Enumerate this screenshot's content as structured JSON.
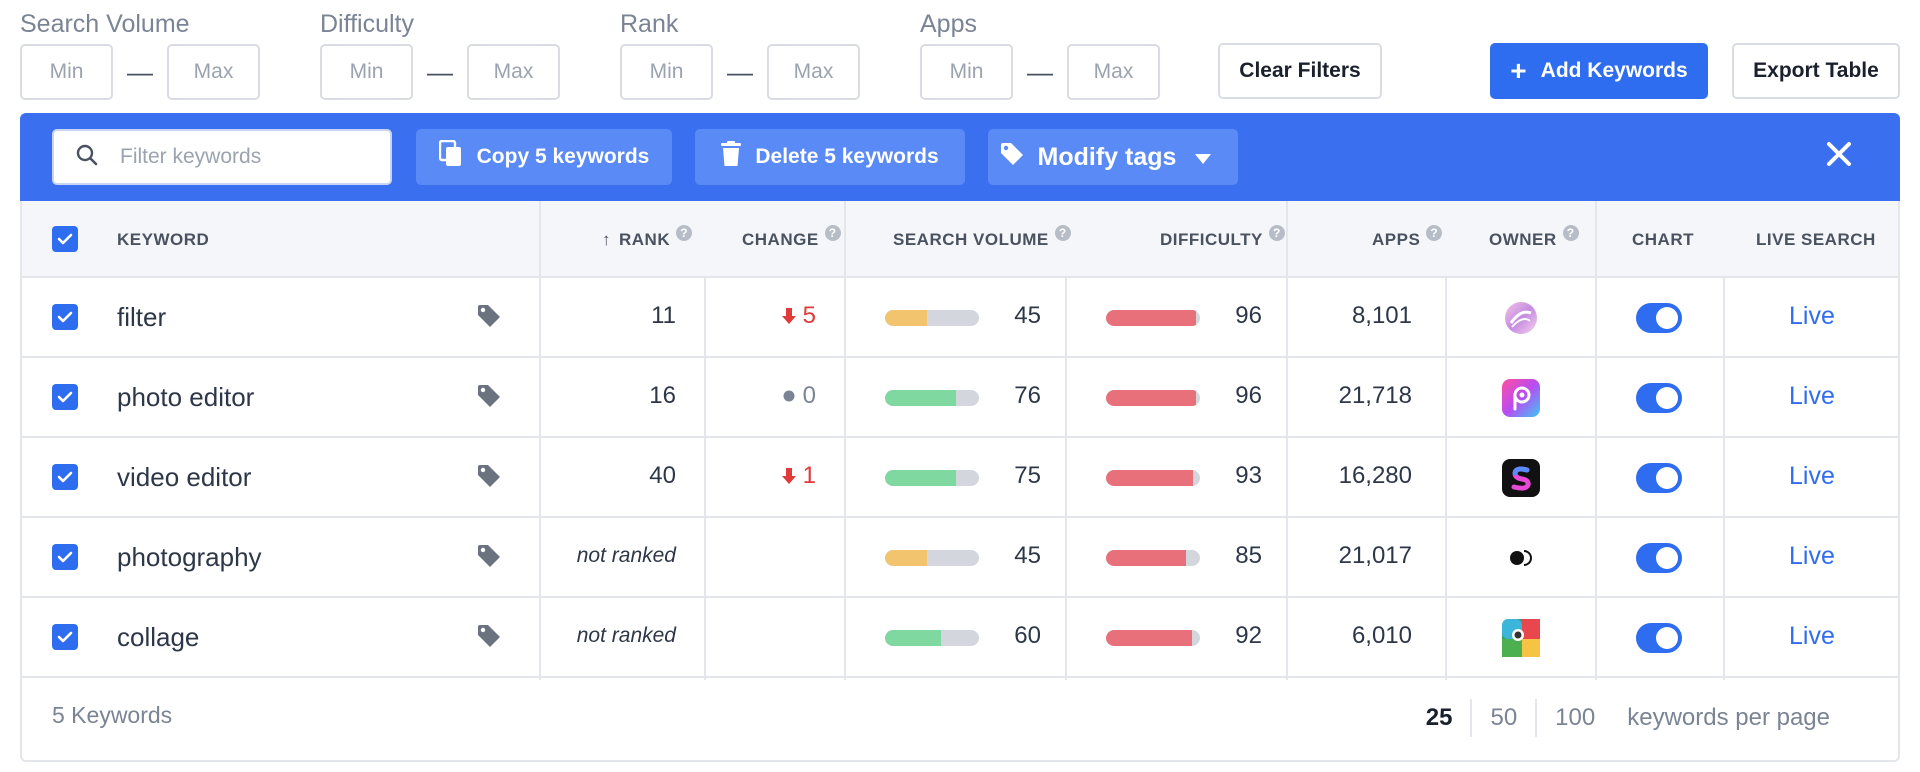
{
  "filters": {
    "groups": [
      {
        "label": "Search Volume",
        "min_placeholder": "Min",
        "max_placeholder": "Max"
      },
      {
        "label": "Difficulty",
        "min_placeholder": "Min",
        "max_placeholder": "Max"
      },
      {
        "label": "Rank",
        "min_placeholder": "Min",
        "max_placeholder": "Max"
      },
      {
        "label": "Apps",
        "min_placeholder": "Min",
        "max_placeholder": "Max"
      }
    ],
    "dash": "—",
    "clear_label": "Clear Filters",
    "add_label": "Add Keywords",
    "export_label": "Export Table"
  },
  "actionbar": {
    "search_placeholder": "Filter keywords",
    "copy_label": "Copy 5 keywords",
    "delete_label": "Delete 5 keywords",
    "tags_label": "Modify tags",
    "accent_color": "#3a6ff0"
  },
  "table": {
    "headers": {
      "keyword": "KEYWORD",
      "rank": "RANK",
      "change": "CHANGE",
      "search_volume": "SEARCH VOLUME",
      "difficulty": "DIFFICULTY",
      "apps": "APPS",
      "owner": "OWNER",
      "chart": "CHART",
      "live_search": "LIVE SEARCH"
    },
    "help_glyph": "?",
    "sort_glyph": "↑",
    "rows": [
      {
        "keyword": "filter",
        "rank": "11",
        "change": "5",
        "change_dir": "down",
        "volume": "45",
        "volume_pct": 45,
        "volume_color": "#f2c46d",
        "difficulty": "96",
        "difficulty_pct": 96,
        "apps": "8,101",
        "owner_icon": "swirl-app-icon",
        "live": "Live"
      },
      {
        "keyword": "photo editor",
        "rank": "16",
        "change": "0",
        "change_dir": "flat",
        "volume": "76",
        "volume_pct": 76,
        "volume_color": "#7fd8a0",
        "difficulty": "96",
        "difficulty_pct": 96,
        "apps": "21,718",
        "owner_icon": "picsart-app-icon",
        "live": "Live"
      },
      {
        "keyword": "video editor",
        "rank": "40",
        "change": "1",
        "change_dir": "down",
        "volume": "75",
        "volume_pct": 75,
        "volume_color": "#7fd8a0",
        "difficulty": "93",
        "difficulty_pct": 93,
        "apps": "16,280",
        "owner_icon": "splice-app-icon",
        "live": "Live"
      },
      {
        "keyword": "photography",
        "rank": "not ranked",
        "change": "",
        "change_dir": "none",
        "volume": "45",
        "volume_pct": 45,
        "volume_color": "#f2c46d",
        "difficulty": "85",
        "difficulty_pct": 85,
        "apps": "21,017",
        "owner_icon": "moon-app-icon",
        "live": "Live"
      },
      {
        "keyword": "collage",
        "rank": "not ranked",
        "change": "",
        "change_dir": "none",
        "volume": "60",
        "volume_pct": 60,
        "volume_color": "#7fd8a0",
        "difficulty": "92",
        "difficulty_pct": 92,
        "apps": "6,010",
        "owner_icon": "collage-app-icon",
        "live": "Live"
      }
    ],
    "difficulty_color": "#e8707a"
  },
  "footer": {
    "count": "5 Keywords",
    "page_sizes": [
      "25",
      "50",
      "100"
    ],
    "active_page_size": "25",
    "per_page_label": "keywords per page"
  }
}
